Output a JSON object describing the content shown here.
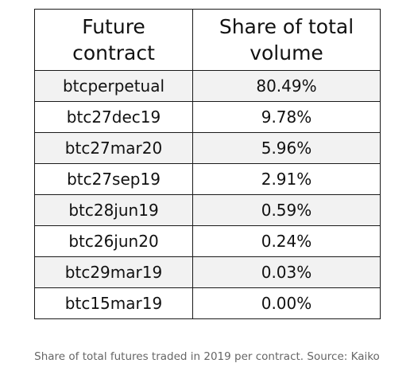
{
  "table": {
    "headers": {
      "contract_line1": "Future",
      "contract_line2": "contract",
      "share_line1": "Share of total",
      "share_line2": "volume"
    },
    "rows": [
      {
        "contract": "btcperpetual",
        "share": "80.49%"
      },
      {
        "contract": "btc27dec19",
        "share": "9.78%"
      },
      {
        "contract": "btc27mar20",
        "share": "5.96%"
      },
      {
        "contract": "btc27sep19",
        "share": "2.91%"
      },
      {
        "contract": "btc28jun19",
        "share": "0.59%"
      },
      {
        "contract": "btc26jun20",
        "share": "0.24%"
      },
      {
        "contract": "btc29mar19",
        "share": "0.03%"
      },
      {
        "contract": "btc15mar19",
        "share": "0.00%"
      }
    ]
  },
  "caption": "Share of total futures traded in 2019 per contract. Source: Kaiko"
}
